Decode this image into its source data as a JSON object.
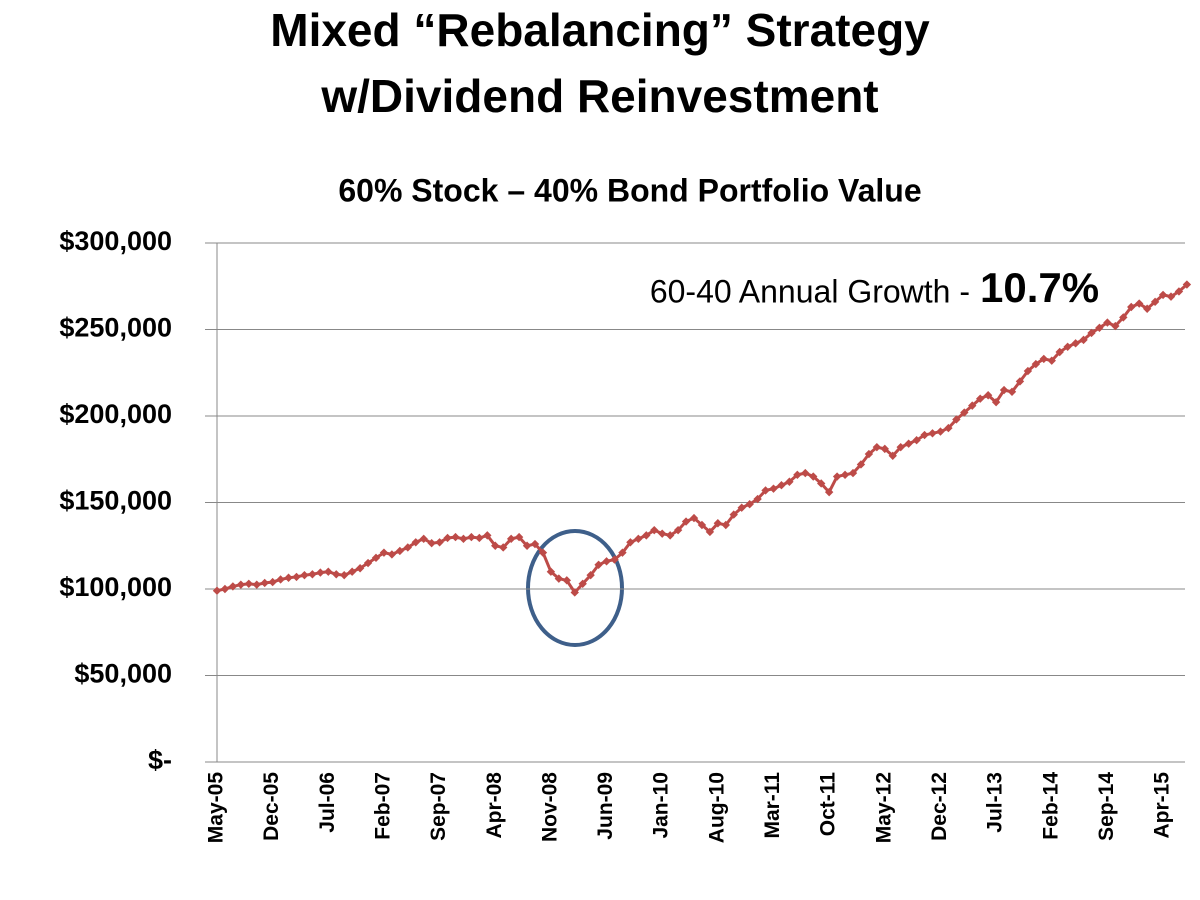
{
  "chart_data": {
    "type": "line",
    "title": [
      "Mixed “Rebalancing” Strategy",
      "w/Dividend Reinvestment"
    ],
    "subtitle": "60% Stock – 40% Bond Portfolio Value",
    "annotation": "60-40 Annual Growth -",
    "annotation_highlight": "10.7%",
    "color": "#bd4b48",
    "categories": [
      "May-05",
      null,
      null,
      null,
      null,
      null,
      null,
      "Dec-05",
      null,
      null,
      null,
      null,
      null,
      null,
      "Jul-06",
      null,
      null,
      null,
      null,
      null,
      null,
      "Feb-07",
      null,
      null,
      null,
      null,
      null,
      null,
      "Sep-07",
      null,
      null,
      null,
      null,
      null,
      null,
      "Apr-08",
      null,
      null,
      null,
      null,
      null,
      null,
      "Nov-08",
      null,
      null,
      null,
      null,
      null,
      null,
      "Jun-09",
      null,
      null,
      null,
      null,
      null,
      null,
      "Jan-10",
      null,
      null,
      null,
      null,
      null,
      null,
      "Aug-10",
      null,
      null,
      null,
      null,
      null,
      null,
      "Mar-11",
      null,
      null,
      null,
      null,
      null,
      null,
      "Oct-11",
      null,
      null,
      null,
      null,
      null,
      null,
      "May-12",
      null,
      null,
      null,
      null,
      null,
      null,
      "Dec-12",
      null,
      null,
      null,
      null,
      null,
      null,
      "Jul-13",
      null,
      null,
      null,
      null,
      null,
      null,
      "Feb-14",
      null,
      null,
      null,
      null,
      null,
      null,
      "Sep-14",
      null,
      null,
      null,
      null,
      null,
      null,
      "Apr-15",
      null,
      null,
      null
    ],
    "values": [
      99000,
      100000,
      101500,
      102500,
      103000,
      102500,
      103500,
      104000,
      105500,
      106500,
      107000,
      108000,
      108500,
      109500,
      110000,
      108500,
      108000,
      110000,
      112000,
      115000,
      118000,
      121000,
      120000,
      122000,
      124000,
      127000,
      129000,
      126500,
      127000,
      129500,
      130000,
      129000,
      130000,
      129500,
      131000,
      125000,
      124000,
      129000,
      130000,
      125000,
      126000,
      121000,
      110000,
      106000,
      105000,
      98000,
      103000,
      108000,
      114000,
      116000,
      117000,
      121000,
      127000,
      129000,
      131000,
      134000,
      132000,
      131000,
      134000,
      139000,
      141000,
      137000,
      133000,
      138000,
      137000,
      143000,
      147000,
      149000,
      152000,
      157000,
      158000,
      160000,
      162000,
      166000,
      167000,
      165000,
      161000,
      156000,
      165000,
      166000,
      167000,
      172000,
      178000,
      182000,
      181000,
      177000,
      182000,
      184000,
      186000,
      189000,
      190000,
      191000,
      193000,
      198000,
      202000,
      206000,
      210000,
      212000,
      208000,
      215000,
      214000,
      220000,
      226000,
      230000,
      233000,
      232000,
      237000,
      240000,
      242000,
      244000,
      248000,
      251000,
      254000,
      252000,
      257000,
      263000,
      265000,
      262000,
      266000,
      270000,
      269000,
      272000,
      276000
    ],
    "ylim": [
      0,
      300000
    ],
    "yticks": [
      {
        "value": 0,
        "label": "$-"
      },
      {
        "value": 50000,
        "label": "$50,000"
      },
      {
        "value": 100000,
        "label": "$100,000"
      },
      {
        "value": 150000,
        "label": "$150,000"
      },
      {
        "value": 200000,
        "label": "$200,000"
      },
      {
        "value": 250000,
        "label": "$250,000"
      },
      {
        "value": 300000,
        "label": "$300,000"
      }
    ],
    "grid": true
  }
}
